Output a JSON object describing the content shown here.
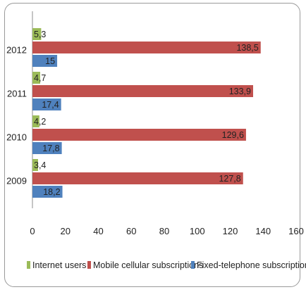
{
  "chart_data": {
    "type": "bar",
    "orientation": "horizontal",
    "categories": [
      "2012",
      "2011",
      "2010",
      "2009"
    ],
    "series": [
      {
        "name": "Internet users",
        "color": "#9BBB59",
        "values": [
          5.3,
          4.7,
          4.2,
          3.4
        ],
        "labels": [
          "5,3",
          "4,7",
          "4,2",
          "3,4"
        ]
      },
      {
        "name": "Mobile cellular subscriptions",
        "color": "#C0504D",
        "values": [
          138.5,
          133.9,
          129.6,
          127.8
        ],
        "labels": [
          "138,5",
          "133,9",
          "129,6",
          "127,8"
        ]
      },
      {
        "name": "Fixed-telephone subscriptions",
        "color": "#4F81BD",
        "values": [
          15,
          17.4,
          17.8,
          18.2
        ],
        "labels": [
          "15",
          "17,4",
          "17,8",
          "18,2"
        ]
      }
    ],
    "xlim": [
      0,
      160
    ],
    "xticks": [
      0,
      20,
      40,
      60,
      80,
      100,
      120,
      140,
      160
    ],
    "grid": false,
    "legend_position": "bottom"
  }
}
